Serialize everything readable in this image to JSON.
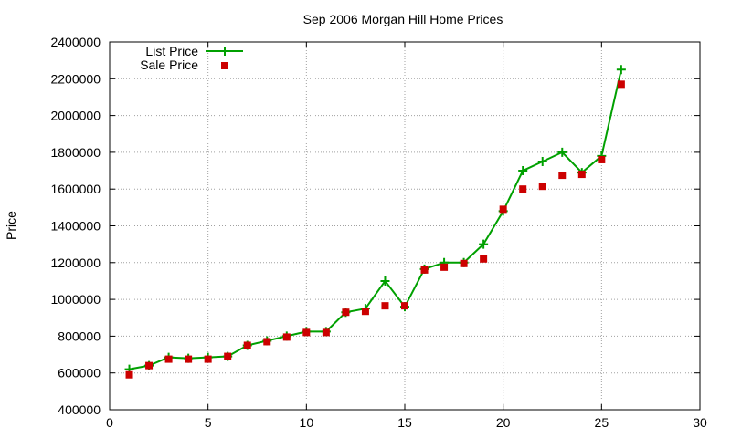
{
  "chart_data": {
    "type": "line",
    "title": "Sep 2006 Morgan Hill Home Prices",
    "xlabel": "",
    "ylabel": "Price",
    "xlim": [
      0,
      30
    ],
    "ylim": [
      400000,
      2400000
    ],
    "x_ticks": [
      0,
      5,
      10,
      15,
      20,
      25,
      30
    ],
    "y_ticks": [
      400000,
      600000,
      800000,
      1000000,
      1200000,
      1400000,
      1600000,
      1800000,
      2000000,
      2200000,
      2400000
    ],
    "grid": true,
    "legend_position": "top-left",
    "series": [
      {
        "name": "List Price",
        "style": "line-with-plus-markers",
        "color": "#00a000",
        "x": [
          1,
          2,
          3,
          4,
          5,
          6,
          7,
          8,
          9,
          10,
          11,
          12,
          13,
          14,
          15,
          16,
          17,
          18,
          19,
          20,
          21,
          22,
          23,
          24,
          25,
          26
        ],
        "y": [
          620000,
          640000,
          685000,
          680000,
          685000,
          690000,
          750000,
          775000,
          800000,
          825000,
          825000,
          930000,
          950000,
          1100000,
          960000,
          1165000,
          1200000,
          1200000,
          1300000,
          1480000,
          1700000,
          1750000,
          1800000,
          1690000,
          1780000,
          2250000
        ]
      },
      {
        "name": "Sale Price",
        "style": "square-points",
        "color": "#cc0000",
        "x": [
          1,
          2,
          3,
          4,
          5,
          6,
          7,
          8,
          9,
          10,
          11,
          12,
          13,
          14,
          15,
          16,
          17,
          18,
          19,
          20,
          21,
          22,
          23,
          24,
          25,
          26
        ],
        "y": [
          590000,
          640000,
          675000,
          675000,
          675000,
          690000,
          750000,
          770000,
          795000,
          820000,
          820000,
          930000,
          935000,
          965000,
          965000,
          1160000,
          1175000,
          1195000,
          1220000,
          1490000,
          1600000,
          1615000,
          1675000,
          1680000,
          1760000,
          2170000
        ]
      }
    ]
  }
}
